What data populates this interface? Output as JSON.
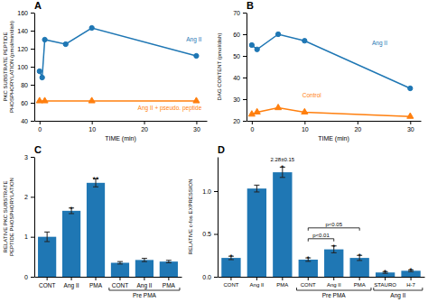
{
  "chart_data": [
    {
      "type": "line",
      "title": "A",
      "xlabel": "TIME (min)",
      "ylabel": "PKC SUBSTRATE PEPTIDE\nPHOSPHORYLATION (pmol/min/dish)",
      "xlim": [
        -1,
        32
      ],
      "xticks": [
        0,
        10,
        20,
        30
      ],
      "ylim": [
        40,
        160
      ],
      "yticks": [
        40,
        60,
        80,
        100,
        120,
        140,
        160
      ],
      "grid": false,
      "series": [
        {
          "name": "Ang II",
          "marker": "circle",
          "x": [
            0,
            0.5,
            1,
            5,
            10,
            30
          ],
          "values": [
            95,
            88,
            130,
            125,
            143,
            112
          ]
        },
        {
          "name": "Ang II + pseudo. peptide",
          "marker": "triangle",
          "x": [
            0,
            1,
            10,
            30
          ],
          "values": [
            62,
            62,
            62,
            62
          ]
        }
      ]
    },
    {
      "type": "line",
      "title": "B",
      "xlabel": "TIME (min)",
      "ylabel": "DAG CONTENT (pmol/dish)",
      "xlim": [
        -1,
        32
      ],
      "xticks": [
        0,
        10,
        20,
        30
      ],
      "ylim": [
        20,
        70
      ],
      "yticks": [
        20,
        30,
        40,
        50,
        60,
        70
      ],
      "grid": false,
      "series": [
        {
          "name": "Ang II",
          "marker": "circle",
          "x": [
            0,
            1,
            5,
            10,
            30
          ],
          "values": [
            55,
            53,
            60,
            57,
            35
          ]
        },
        {
          "name": "Control",
          "marker": "triangle",
          "x": [
            0,
            1,
            5,
            10,
            30
          ],
          "values": [
            23,
            24,
            26,
            24,
            22
          ]
        }
      ]
    },
    {
      "type": "bar",
      "title": "C",
      "ylabel": "RELATIVE PKC SUBSTRATE\nPEPTIDE PHOSPHORYLATION",
      "categories": [
        "CONT",
        "Ang II",
        "PMA",
        "CONT",
        "Ang II",
        "PMA"
      ],
      "values": [
        1.0,
        1.65,
        2.35,
        0.35,
        0.42,
        0.38
      ],
      "errors": [
        0.12,
        0.07,
        0.1,
        0.03,
        0.04,
        0.03
      ],
      "ylim": [
        0,
        3
      ],
      "yticks": [
        0,
        1,
        2,
        3
      ],
      "grid": false,
      "annotations": [
        {
          "text": "*",
          "bar": 1
        },
        {
          "text": "**",
          "bar": 2
        }
      ],
      "groups": [
        {
          "text": "Pre PMA",
          "bars": [
            3,
            5
          ]
        }
      ]
    },
    {
      "type": "bar",
      "title": "D",
      "ylabel": "RELATIVE c-fos EXPRESSION",
      "categories": [
        "CONT",
        "Ang II",
        "PMA",
        "CONT",
        "Ang II",
        "PMA",
        "STAURO",
        "H-7"
      ],
      "values": [
        0.22,
        1.03,
        1.22,
        0.2,
        0.32,
        0.22,
        0.05,
        0.07
      ],
      "errors": [
        0.02,
        0.04,
        0.06,
        0.02,
        0.04,
        0.03,
        0.01,
        0.01
      ],
      "ylim": [
        0,
        1.4
      ],
      "yticks": [
        {
          "value": 0,
          "label": "0.0"
        },
        0.5,
        {
          "value": 1,
          "label": "1.0"
        }
      ],
      "grid": false,
      "annotations": [
        {
          "text": "*",
          "bar": 0
        },
        {
          "text": "*",
          "bar": 2
        },
        {
          "text": "2.28±0.15",
          "bar": 2
        },
        {
          "text": "*",
          "bar": 3
        },
        {
          "text": "*",
          "bar": 4
        },
        {
          "text": "*",
          "bar": 5
        },
        {
          "text": "*",
          "bar": 6
        },
        {
          "text": "*",
          "bar": 7
        }
      ],
      "brackets": [
        {
          "text": "p<0.01",
          "bars": [
            3,
            4
          ]
        },
        {
          "text": "p<0.05",
          "bars": [
            3,
            5
          ]
        }
      ],
      "groups": [
        {
          "text": "Pre PMA",
          "bars": [
            3,
            5
          ]
        },
        {
          "text": "Ang II",
          "bars": [
            6,
            7
          ]
        }
      ]
    }
  ]
}
